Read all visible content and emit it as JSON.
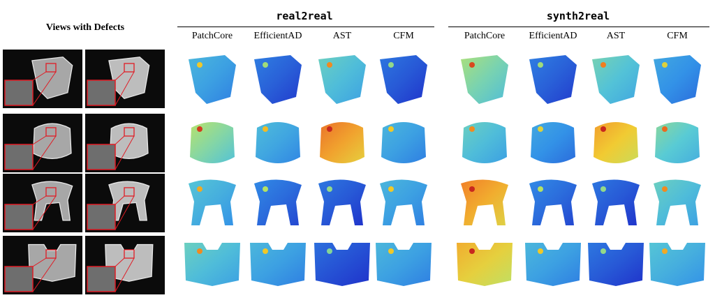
{
  "figure": {
    "views_title": "Views with Defects",
    "groups": [
      {
        "title": "real2real"
      },
      {
        "title": "synth2real"
      }
    ],
    "methods": [
      "PatchCore",
      "EfficientAD",
      "AST",
      "CFM"
    ],
    "objects": [
      {
        "name": "bin-object",
        "shape": "bin"
      },
      {
        "name": "cylinder-object",
        "shape": "cylinder"
      },
      {
        "name": "stool-object",
        "shape": "stool"
      },
      {
        "name": "tray-object",
        "shape": "tray"
      }
    ],
    "anomaly_score_levels": [
      [
        0.3,
        0.12,
        0.4,
        0.1,
        0.5,
        0.12,
        0.42,
        0.25
      ],
      [
        0.52,
        0.32,
        0.82,
        0.3,
        0.4,
        0.25,
        0.75,
        0.45
      ],
      [
        0.35,
        0.15,
        0.1,
        0.3,
        0.8,
        0.15,
        0.1,
        0.4
      ],
      [
        0.4,
        0.3,
        0.08,
        0.3,
        0.72,
        0.3,
        0.1,
        0.35
      ]
    ],
    "colors": {
      "highlight_box": "#e01b24",
      "rule": "#000000",
      "background": "#ffffff"
    }
  }
}
